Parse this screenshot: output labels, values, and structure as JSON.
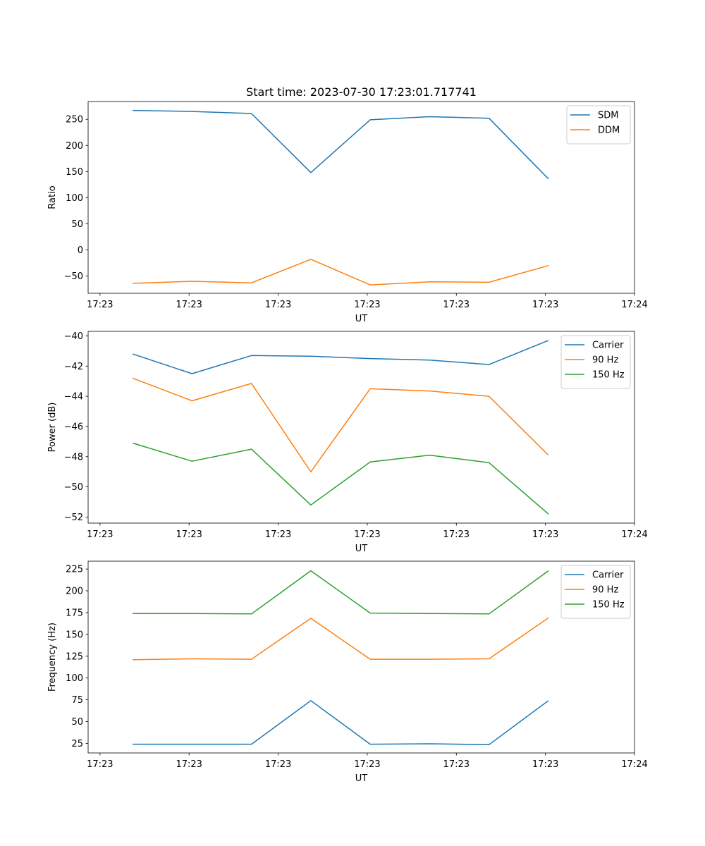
{
  "figure": {
    "title": "Start time: 2023-07-30 17:23:01.717741"
  },
  "colors": {
    "blue": "#1f77b4",
    "orange": "#ff7f0e",
    "green": "#2ca02c"
  },
  "chart_data": [
    {
      "type": "line",
      "title": "Start time: 2023-07-30 17:23:01.717741",
      "xlabel": "UT",
      "ylabel": "Ratio",
      "x": [
        1,
        2,
        3,
        4,
        5,
        6,
        7,
        8
      ],
      "xlim": [
        0.25,
        9.45
      ],
      "xticks": [
        0.45,
        1.95,
        3.45,
        4.95,
        6.45,
        7.95,
        9.45
      ],
      "xticklabels": [
        "17:23",
        "17:23",
        "17:23",
        "17:23",
        "17:23",
        "17:23",
        "17:24"
      ],
      "ylim": [
        -83,
        284
      ],
      "yticks": [
        -50,
        0,
        50,
        100,
        150,
        200,
        250
      ],
      "legend_position": "top-right",
      "series": [
        {
          "name": "SDM",
          "color": "#1f77b4",
          "values": [
            267,
            265,
            261,
            148,
            249,
            255,
            252,
            136
          ]
        },
        {
          "name": "DDM",
          "color": "#ff7f0e",
          "values": [
            -64,
            -60,
            -63,
            -18,
            -67,
            -61,
            -62,
            -30
          ]
        }
      ]
    },
    {
      "type": "line",
      "title": "",
      "xlabel": "UT",
      "ylabel": "Power (dB)",
      "x": [
        1,
        2,
        3,
        4,
        5,
        6,
        7,
        8
      ],
      "xlim": [
        0.25,
        9.45
      ],
      "xticks": [
        0.45,
        1.95,
        3.45,
        4.95,
        6.45,
        7.95,
        9.45
      ],
      "xticklabels": [
        "17:23",
        "17:23",
        "17:23",
        "17:23",
        "17:23",
        "17:23",
        "17:24"
      ],
      "ylim": [
        -52.4,
        -39.7
      ],
      "yticks": [
        -52,
        -50,
        -48,
        -46,
        -44,
        -42,
        -40
      ],
      "legend_position": "top-right",
      "series": [
        {
          "name": "Carrier",
          "color": "#1f77b4",
          "values": [
            -41.2,
            -42.5,
            -41.3,
            -41.35,
            -41.5,
            -41.6,
            -41.9,
            -40.3
          ]
        },
        {
          "name": "90 Hz",
          "color": "#ff7f0e",
          "values": [
            -42.8,
            -44.3,
            -43.15,
            -49.0,
            -43.5,
            -43.65,
            -44.0,
            -47.9
          ]
        },
        {
          "name": "150 Hz",
          "color": "#2ca02c",
          "values": [
            -47.1,
            -48.3,
            -47.5,
            -51.2,
            -48.35,
            -47.9,
            -48.4,
            -51.8
          ]
        }
      ]
    },
    {
      "type": "line",
      "title": "",
      "xlabel": "UT",
      "ylabel": "Frequency (Hz)",
      "x": [
        1,
        2,
        3,
        4,
        5,
        6,
        7,
        8
      ],
      "xlim": [
        0.25,
        9.45
      ],
      "xticks": [
        0.45,
        1.95,
        3.45,
        4.95,
        6.45,
        7.95,
        9.45
      ],
      "xticklabels": [
        "17:23",
        "17:23",
        "17:23",
        "17:23",
        "17:23",
        "17:23",
        "17:24"
      ],
      "ylim": [
        14,
        234
      ],
      "yticks": [
        25,
        50,
        75,
        100,
        125,
        150,
        175,
        200,
        225
      ],
      "legend_position": "top-right",
      "series": [
        {
          "name": "Carrier",
          "color": "#1f77b4",
          "values": [
            24,
            24,
            24,
            74,
            24,
            24.5,
            23.5,
            74
          ]
        },
        {
          "name": "90 Hz",
          "color": "#ff7f0e",
          "values": [
            121,
            122,
            121.5,
            168.5,
            121.5,
            121.5,
            122,
            169
          ]
        },
        {
          "name": "150 Hz",
          "color": "#2ca02c",
          "values": [
            174,
            174,
            173.5,
            223,
            174.5,
            174,
            173.5,
            223
          ]
        }
      ]
    }
  ]
}
